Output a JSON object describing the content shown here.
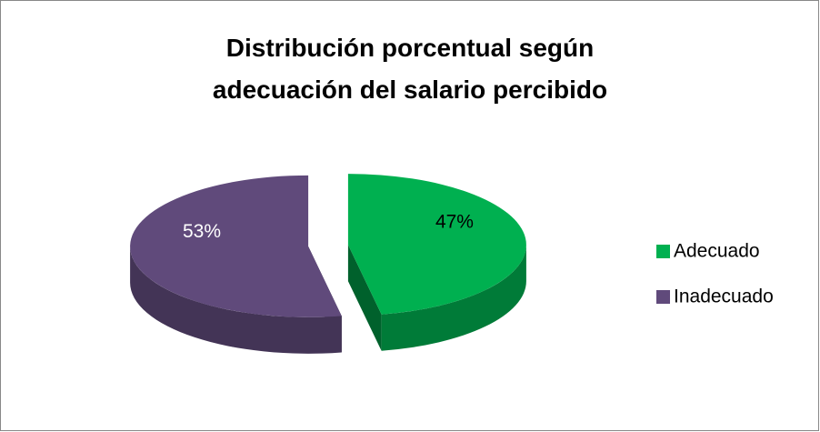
{
  "chart_data": {
    "type": "pie3d",
    "title": "Distribución porcentual según adecuación del salario percibido",
    "categories": [
      "Adecuado",
      "Inadecuado"
    ],
    "values": [
      47,
      53
    ],
    "value_labels": [
      "47%",
      "53%"
    ],
    "colors": [
      "#00b050",
      "#604a7b"
    ],
    "value_label_colors": [
      "#000000",
      "#ffffff"
    ],
    "legend": "right"
  }
}
